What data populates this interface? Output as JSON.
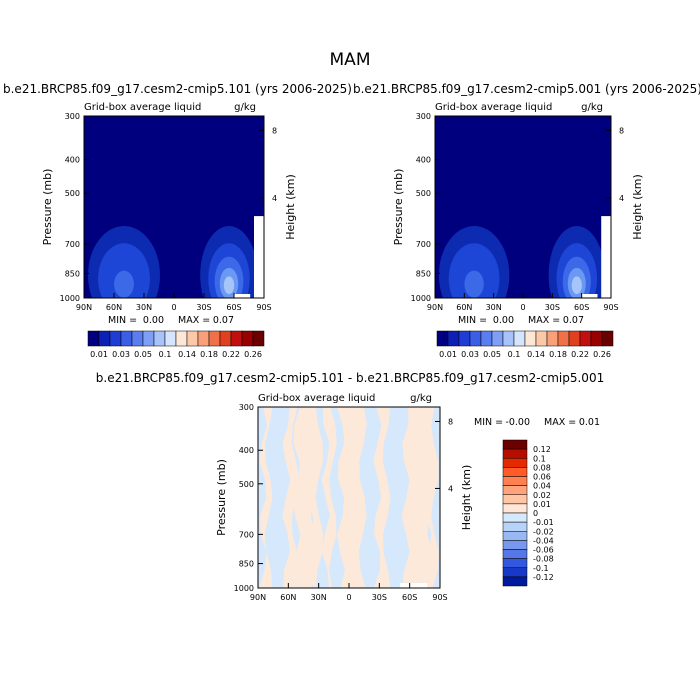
{
  "figure": {
    "season": "MAM",
    "left_title": "b.e21.BRCP85.f09_g17.cesm2-cmip5.101 (yrs 2006-2025)",
    "right_title": "b.e21.BRCP85.f09_g17.cesm2-cmip5.001 (yrs 2006-2025)",
    "diff_title": "b.e21.BRCP85.f09_g17.cesm2-cmip5.101 - b.e21.BRCP85.f09_g17.cesm2-cmip5.001",
    "field_label": "Grid-box average liquid",
    "units": "g/kg"
  },
  "chart_data": [
    {
      "type": "heatmap",
      "title": "b.e21.BRCP85.f09_g17.cesm2-cmip5.101 (yrs 2006-2025)",
      "field": "Grid-box average liquid",
      "units": "g/kg",
      "xlabel": "",
      "ylabel": "Pressure (mb)",
      "ylabel_right": "Height (km)",
      "x_ticks": [
        "90N",
        "60N",
        "30N",
        "0",
        "30S",
        "60S",
        "90S"
      ],
      "y_ticks": [
        "300",
        "400",
        "500",
        "700",
        "850",
        "1000"
      ],
      "y_ticks_right": [
        "8",
        "4"
      ],
      "ylim": [
        1000,
        300
      ],
      "min_label": "MIN =",
      "min_value": "0.00",
      "max_label": "MAX =",
      "max_value": "0.07",
      "features": [
        {
          "lat_center": 50,
          "p_center": 860,
          "peak": 0.03
        },
        {
          "lat_center": -55,
          "p_center": 860,
          "peak": 0.07
        }
      ]
    },
    {
      "type": "heatmap",
      "title": "b.e21.BRCP85.f09_g17.cesm2-cmip5.001 (yrs 2006-2025)",
      "field": "Grid-box average liquid",
      "units": "g/kg",
      "xlabel": "",
      "ylabel": "Pressure (mb)",
      "ylabel_right": "Height (km)",
      "x_ticks": [
        "90N",
        "60N",
        "30N",
        "0",
        "30S",
        "60S",
        "90S"
      ],
      "y_ticks": [
        "300",
        "400",
        "500",
        "700",
        "850",
        "1000"
      ],
      "y_ticks_right": [
        "8",
        "4"
      ],
      "ylim": [
        1000,
        300
      ],
      "min_label": "MIN =",
      "min_value": "0.00",
      "max_label": "MAX =",
      "max_value": "0.07",
      "features": [
        {
          "lat_center": 50,
          "p_center": 860,
          "peak": 0.03
        },
        {
          "lat_center": -55,
          "p_center": 860,
          "peak": 0.07
        }
      ]
    },
    {
      "type": "heatmap",
      "title": "b.e21.BRCP85.f09_g17.cesm2-cmip5.101 - b.e21.BRCP85.f09_g17.cesm2-cmip5.001",
      "field": "Grid-box average liquid",
      "units": "g/kg",
      "xlabel": "",
      "ylabel": "Pressure (mb)",
      "ylabel_right": "Height (km)",
      "x_ticks": [
        "90N",
        "60N",
        "30N",
        "0",
        "30S",
        "60S",
        "90S"
      ],
      "y_ticks": [
        "300",
        "400",
        "500",
        "700",
        "850",
        "1000"
      ],
      "y_ticks_right": [
        "8",
        "4"
      ],
      "ylim": [
        1000,
        300
      ],
      "min_label": "MIN =",
      "min_value": "-0.00",
      "max_label": "MAX =",
      "max_value": "0.01"
    }
  ],
  "colorbars": {
    "abs": {
      "colors": [
        "#000080",
        "#0d1fb5",
        "#1f3dd4",
        "#3a5ee6",
        "#5a7ef0",
        "#7e9ff5",
        "#a8c2fa",
        "#d4e5fd",
        "#fde8d8",
        "#fcc8a8",
        "#f9a078",
        "#f07048",
        "#e04020",
        "#c21010",
        "#990000",
        "#6a0000"
      ],
      "labels": [
        "0.01",
        "0.03",
        "0.05",
        "0.1",
        "0.14",
        "0.18",
        "0.22",
        "0.26"
      ]
    },
    "diff": {
      "colors": [
        "#6b0000",
        "#b50e00",
        "#e52a00",
        "#ff5a28",
        "#ff8050",
        "#ffa37c",
        "#ffc6a6",
        "#ffe6d6",
        "#d6e8fb",
        "#b8d3f8",
        "#98b8f3",
        "#7898ee",
        "#5577e8",
        "#3357de",
        "#1838c8",
        "#001a9c"
      ],
      "labels": [
        "0.12",
        "0.1",
        "0.08",
        "0.06",
        "0.04",
        "0.02",
        "0.01",
        "0",
        "-0.01",
        "-0.02",
        "-0.04",
        "-0.06",
        "-0.08",
        "-0.1",
        "-0.12"
      ]
    }
  }
}
